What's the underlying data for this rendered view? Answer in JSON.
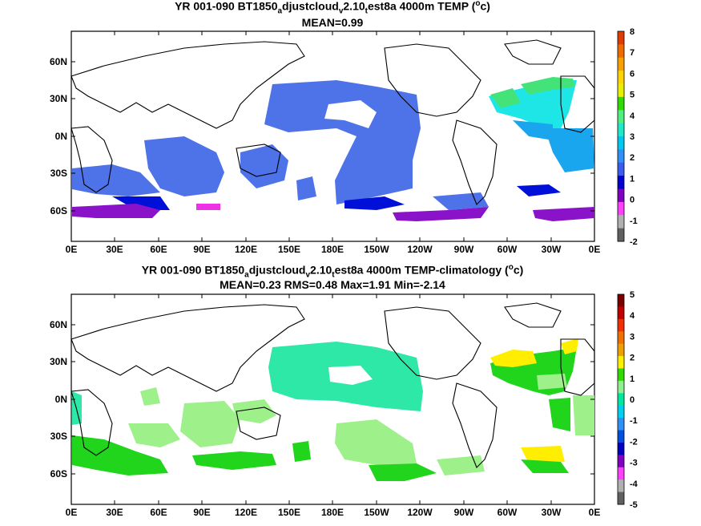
{
  "panels": [
    {
      "title_main": "YR 001-090 BT1850",
      "title_sub1": "a",
      "title_mid1": "djustcloud",
      "title_sub2": "v",
      "title_mid2": "2.10",
      "title_sub3": "t",
      "title_tail": "est8a 4000m TEMP (",
      "title_sup": "o",
      "title_end": "c)",
      "stats": "MEAN=0.99",
      "lat_labels": [
        "60N",
        "30N",
        "0N",
        "30S",
        "60S"
      ],
      "lon_labels": [
        "0E",
        "30E",
        "60E",
        "90E",
        "120E",
        "150E",
        "180E",
        "150W",
        "120W",
        "90W",
        "60W",
        "30W",
        "0E"
      ],
      "colorbar": {
        "labels": [
          "8",
          "7",
          "6",
          "5",
          "4",
          "3",
          "2",
          "1",
          "0",
          "-1",
          "-2"
        ],
        "colors": [
          "#e03c00",
          "#f06a00",
          "#f8a000",
          "#ffd400",
          "#e8f000",
          "#30dc00",
          "#50f080",
          "#20e8c8",
          "#00c8f0",
          "#3090f8",
          "#3b5cf0",
          "#0000d0",
          "#8000c0",
          "#ff40ff",
          "#b0b0b0",
          "#606060"
        ]
      }
    },
    {
      "title_main": "YR 001-090 BT1850",
      "title_sub1": "a",
      "title_mid1": "djustcloud",
      "title_sub2": "v",
      "title_mid2": "2.10",
      "title_sub3": "t",
      "title_tail": "est8a 4000m TEMP-climatology (",
      "title_sup": "o",
      "title_end": "c)",
      "stats": "MEAN=0.23   RMS=0.48   Max=1.91   Min=-2.14",
      "lat_labels": [
        "60N",
        "30N",
        "0N",
        "30S",
        "60S"
      ],
      "lon_labels": [
        "0E",
        "30E",
        "60E",
        "90E",
        "120E",
        "150E",
        "180E",
        "150W",
        "120W",
        "90W",
        "60W",
        "30W",
        "0E"
      ],
      "colorbar": {
        "labels": [
          "5",
          "4",
          "3",
          "2",
          "1",
          "0",
          "-1",
          "-2",
          "-3",
          "-4",
          "-5"
        ],
        "colors": [
          "#7a0000",
          "#c00000",
          "#f03000",
          "#f07000",
          "#f0a000",
          "#fff000",
          "#30dc00",
          "#90f090",
          "#00e8a0",
          "#00d0f0",
          "#3090f8",
          "#0050e0",
          "#0000c0",
          "#8000c0",
          "#ff40ff",
          "#b0b0b0",
          "#606060"
        ]
      }
    }
  ]
}
